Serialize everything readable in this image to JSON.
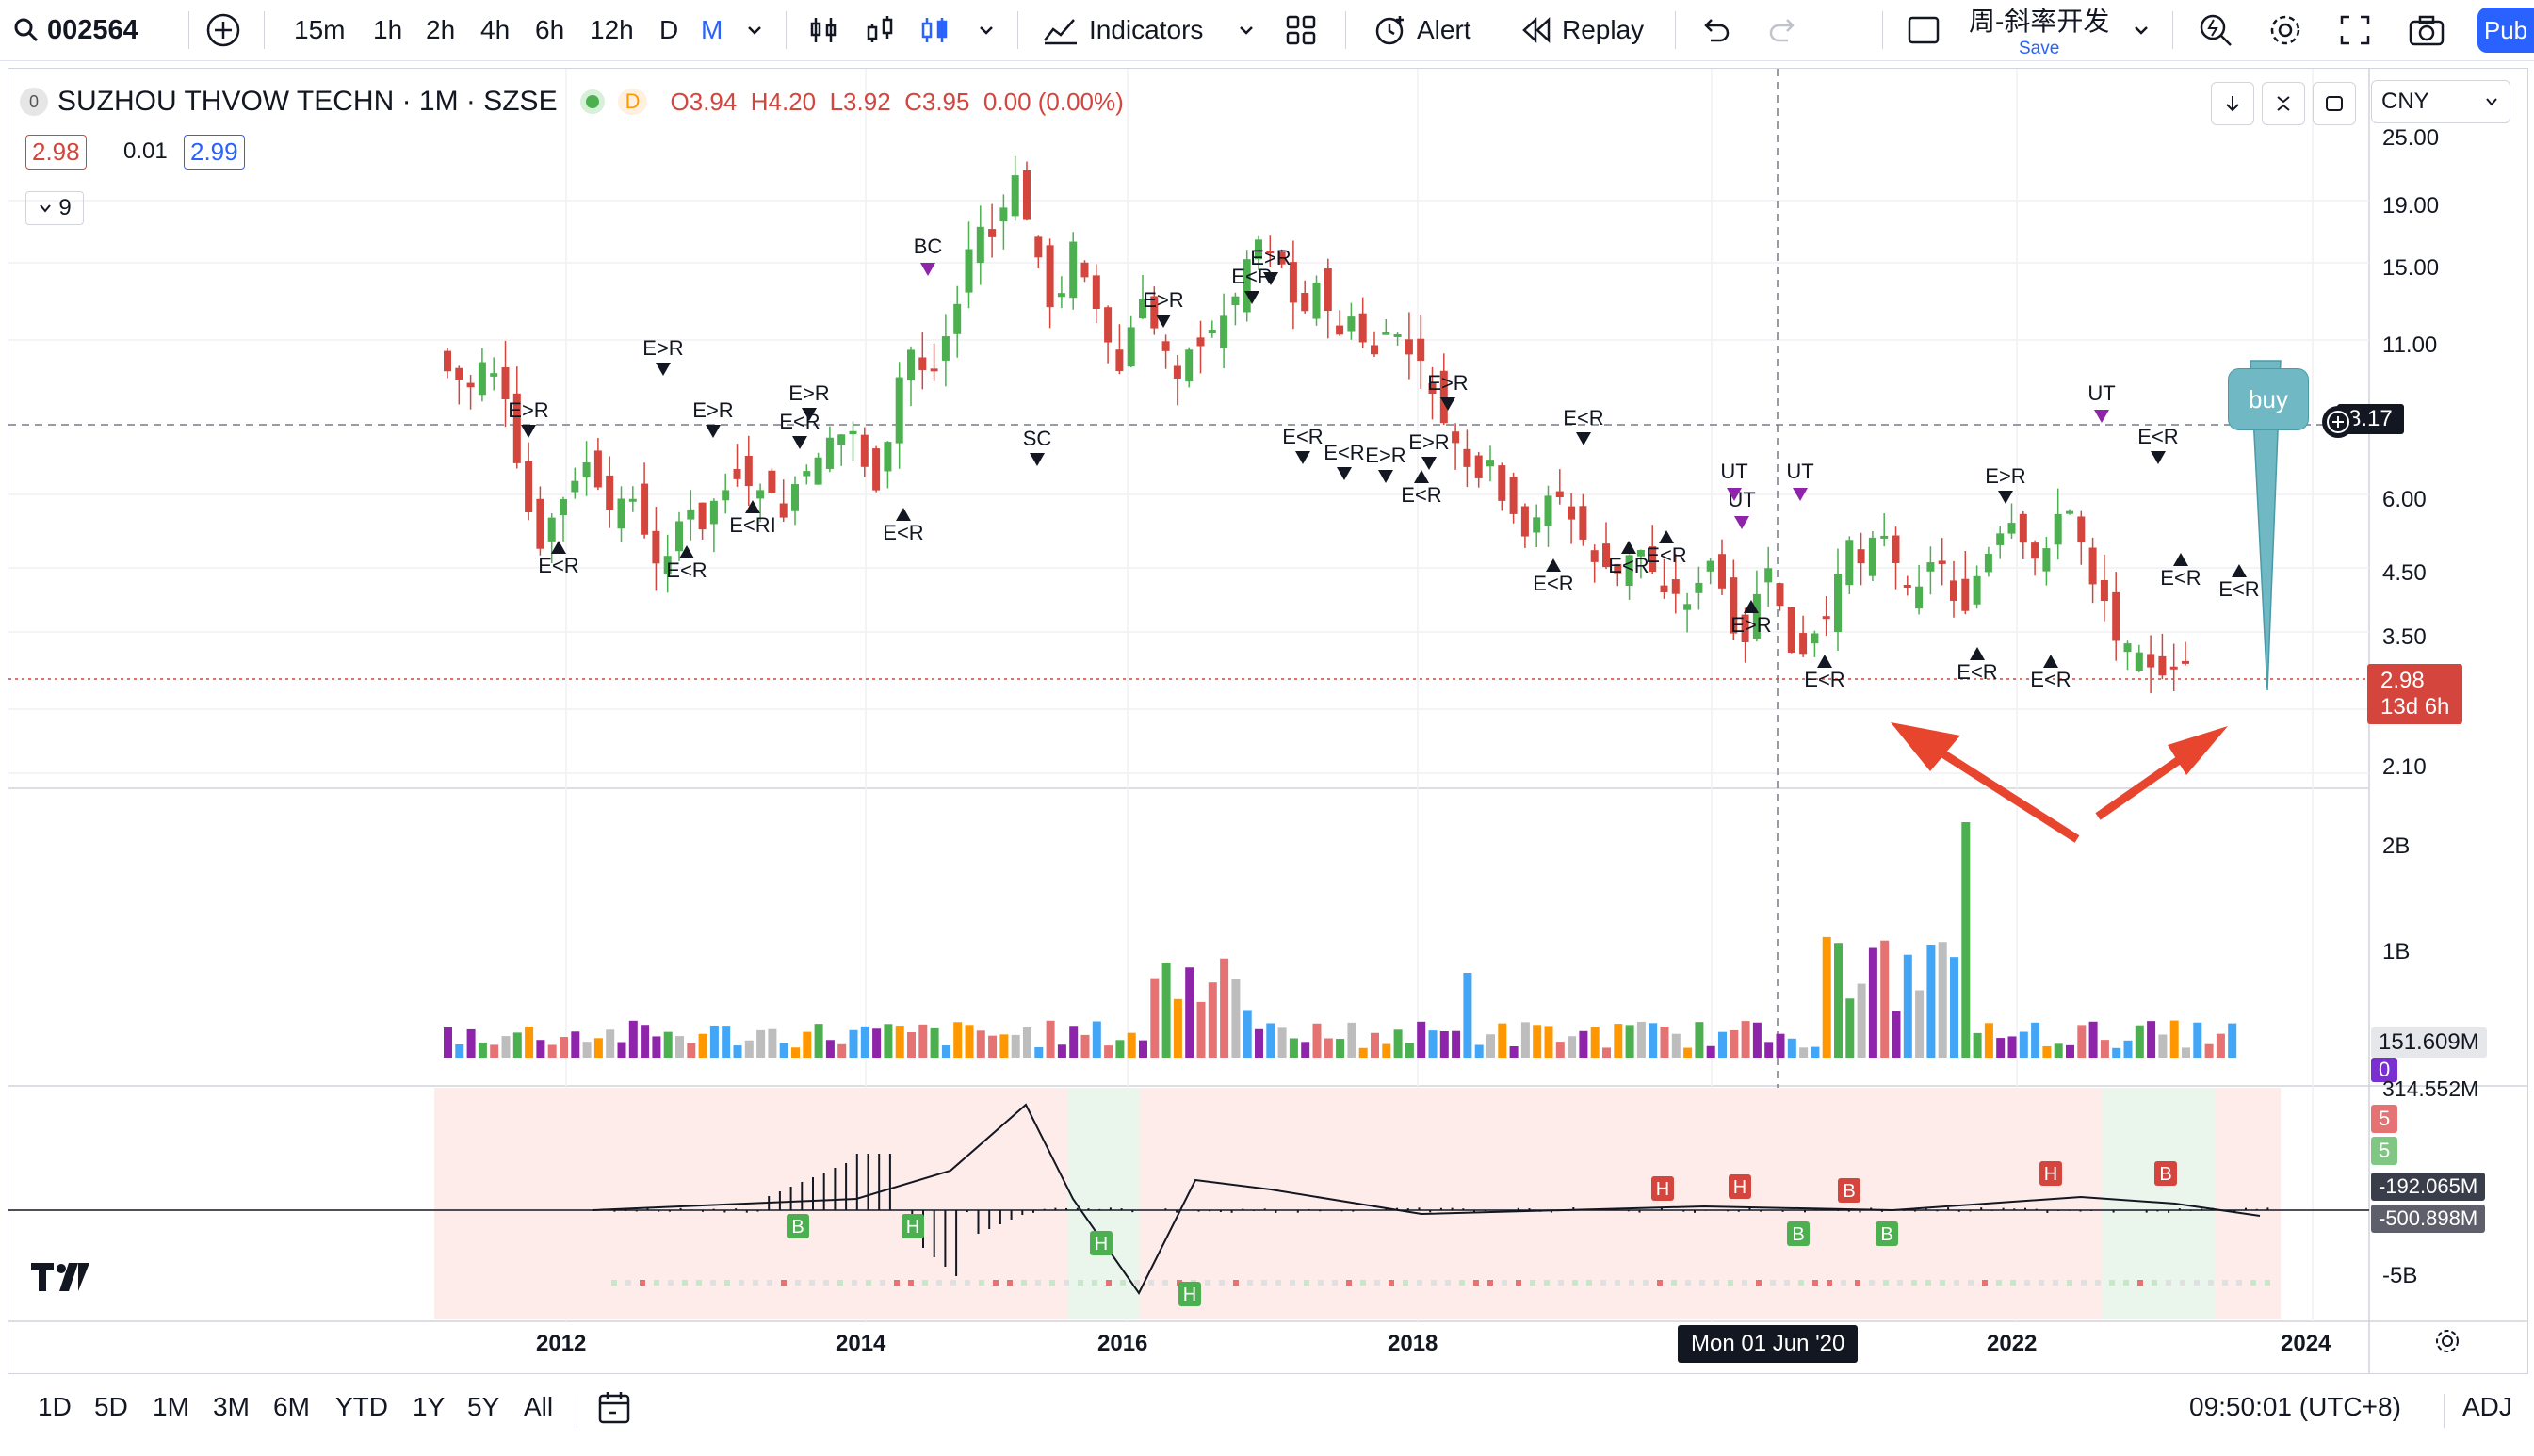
{
  "toolbar": {
    "symbol": "002564",
    "intervals": [
      "15m",
      "1h",
      "2h",
      "4h",
      "6h",
      "12h",
      "D",
      "M"
    ],
    "active_interval": "M",
    "indicators_label": "Indicators",
    "alert_label": "Alert",
    "replay_label": "Replay",
    "layout_name": "周-斜率开发",
    "save_label": "Save",
    "publish_label": "Pub"
  },
  "legend": {
    "title": "SUZHOU THVOW TECHN · 1M · SZSE",
    "flag": "D",
    "ohlc": "O3.94  H4.20  L3.92  C3.95  0.00 (0.00%)",
    "bid": "2.98",
    "spread": "0.01",
    "ask": "2.99",
    "indicator_count": "9"
  },
  "price_axis": {
    "currency": "CNY",
    "labels": [
      "25.00",
      "19.00",
      "15.00",
      "11.00",
      "8.17",
      "6.00",
      "4.50",
      "3.50",
      "2.98",
      "2.10"
    ],
    "last_price": "2.98",
    "countdown": "13d 6h",
    "crosshair_price": "8.17"
  },
  "volume_axis": {
    "labels": [
      "2B",
      "1B"
    ],
    "volume_value": "151.609M",
    "zero": "0"
  },
  "osc_axis": {
    "labels": [
      "314.552M",
      "5",
      "5",
      "-192.065M",
      "-500.898M",
      "-5B"
    ]
  },
  "time_axis": {
    "labels": [
      "2012",
      "2014",
      "2016",
      "2018",
      "2022",
      "2024"
    ],
    "crosshair_date": "Mon 01 Jun '20"
  },
  "annotations": {
    "buy_label": "buy",
    "markers": [
      "E>R",
      "E<R",
      "E>R",
      "E<R",
      "E>R",
      "E<RI",
      "E<R",
      "E>R",
      "E<R",
      "BC",
      "SC",
      "E>R",
      "E<R",
      "E>R",
      "E<R",
      "E<R",
      "E>R",
      "E>R",
      "E>R",
      "E<R",
      "E<R",
      "UT",
      "UT",
      "UT",
      "E<R",
      "E<R",
      "E<R",
      "E>R",
      "E<R",
      "UT",
      "E>R",
      "E<R",
      "E<R",
      "E<R"
    ],
    "osc_labels": [
      "B",
      "H",
      "H",
      "H",
      "H",
      "H",
      "B",
      "B",
      "B",
      "H",
      "B"
    ]
  },
  "bottom": {
    "ranges": [
      "1D",
      "5D",
      "1M",
      "3M",
      "6M",
      "YTD",
      "1Y",
      "5Y",
      "All"
    ],
    "clock": "09:50:01 (UTC+8)",
    "adj": "ADJ"
  },
  "colors": {
    "up": "#4caf50",
    "down": "#d3453d",
    "accent": "#2962ff",
    "buy_bubble": "#6fb8c4",
    "arrow": "#e8452f"
  }
}
